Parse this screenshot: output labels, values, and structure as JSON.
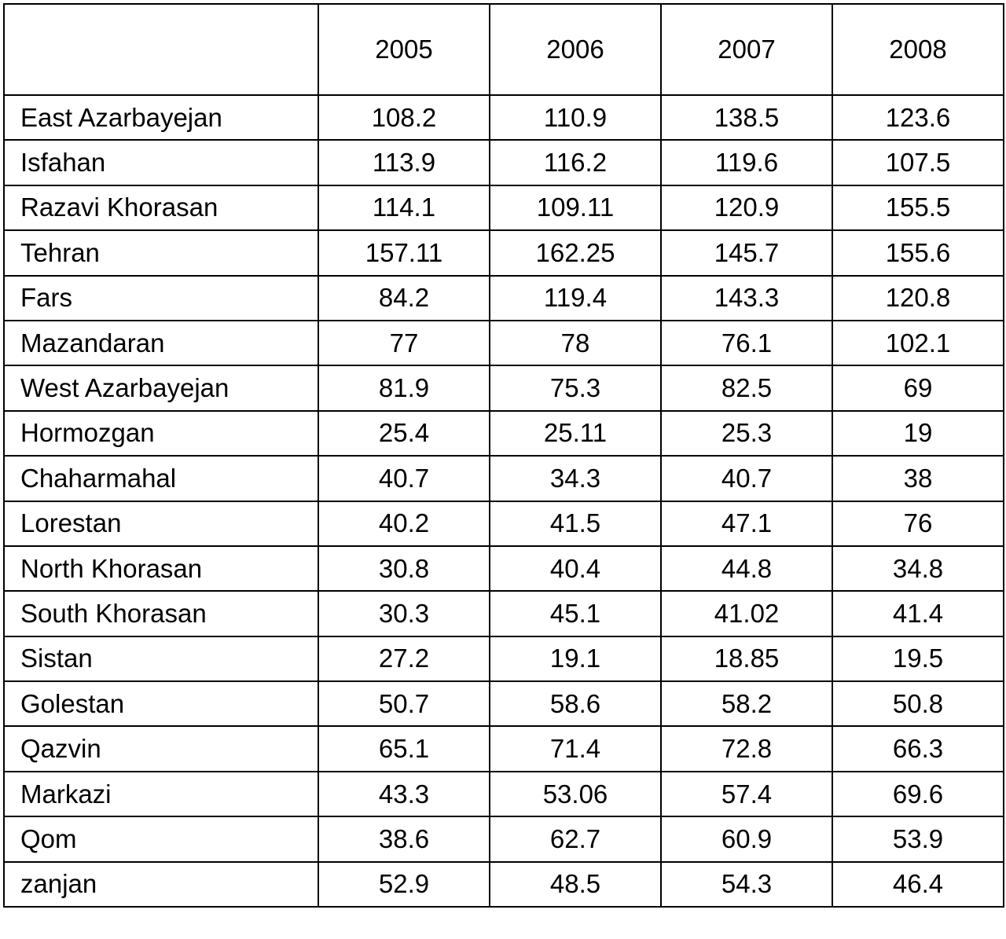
{
  "table": {
    "columns": [
      "2005",
      "2006",
      "2007",
      "2008"
    ],
    "rows": [
      [
        "East Azarbayejan",
        "108.2",
        "110.9",
        "138.5",
        "123.6"
      ],
      [
        "Isfahan",
        "113.9",
        "116.2",
        "119.6",
        "107.5"
      ],
      [
        "Razavi Khorasan",
        "114.1",
        "109.11",
        "120.9",
        "155.5"
      ],
      [
        "Tehran",
        "157.11",
        "162.25",
        "145.7",
        "155.6"
      ],
      [
        "Fars",
        "84.2",
        "119.4",
        "143.3",
        "120.8"
      ],
      [
        "Mazandaran",
        "77",
        "78",
        "76.1",
        "102.1"
      ],
      [
        "West Azarbayejan",
        "81.9",
        "75.3",
        "82.5",
        "69"
      ],
      [
        "Hormozgan",
        "25.4",
        "25.11",
        "25.3",
        "19"
      ],
      [
        "Chaharmahal",
        "40.7",
        "34.3",
        "40.7",
        "38"
      ],
      [
        "Lorestan",
        "40.2",
        "41.5",
        "47.1",
        "76"
      ],
      [
        "North Khorasan",
        "30.8",
        "40.4",
        "44.8",
        "34.8"
      ],
      [
        "South Khorasan",
        "30.3",
        "45.1",
        "41.02",
        "41.4"
      ],
      [
        "Sistan",
        "27.2",
        "19.1",
        "18.85",
        "19.5"
      ],
      [
        "Golestan",
        "50.7",
        "58.6",
        "58.2",
        "50.8"
      ],
      [
        "Qazvin",
        "65.1",
        "71.4",
        "72.8",
        "66.3"
      ],
      [
        "Markazi",
        "43.3",
        "53.06",
        "57.4",
        "69.6"
      ],
      [
        "Qom",
        "38.6",
        "62.7",
        "60.9",
        "53.9"
      ],
      [
        "zanjan",
        "52.9",
        "48.5",
        "54.3",
        "46.4"
      ]
    ]
  }
}
